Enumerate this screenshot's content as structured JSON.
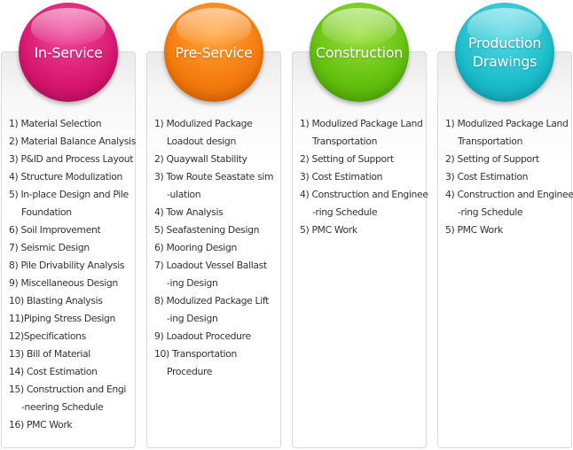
{
  "columns": [
    {
      "title": "In-Service",
      "color": "#d8166f",
      "lines": [
        "1) Material Selection",
        "2) Material Balance Analysis",
        "3) P&ID and Process Layout",
        "4) Structure Modulization",
        "5) In-place Design and Pile",
        "Foundation",
        "6) Soil Improvement",
        "7) Seismic Design",
        "8) Pile Drivability Analysis",
        "9) Miscellaneous Design",
        "10) Blasting Analysis",
        "11)Piping Stress Design",
        "12)Specifications",
        "13) Bill of Material",
        "14) Cost Estimation",
        "15) Construction and Engi",
        "-neering Schedule",
        "16) PMC Work"
      ]
    },
    {
      "title": "Pre-Service",
      "color": "#f47a0c",
      "lines": [
        "1) Modulized Package",
        "Loadout design",
        "2) Quaywall Stability",
        "3) Tow Route Seastate sim",
        "-ulation",
        "4) Tow Analysis",
        "5) Seafastening Design",
        "6) Mooring Design",
        "7) Loadout Vessel Ballast",
        "-ing Design",
        "8) Modulized Package Lift",
        "-ing Design",
        "9) Loadout Procedure",
        "10) Transportation",
        "Procedure"
      ]
    },
    {
      "title": "Construction",
      "color": "#62c00e",
      "lines": [
        "1) Modulized Package Land",
        "Transportation",
        "2) Setting of Support",
        "3) Cost Estimation",
        "4) Construction and Enginee",
        "-ring Schedule",
        "5) PMC Work"
      ]
    },
    {
      "title": "Production\nDrawings",
      "color": "#1bbccb",
      "lines": [
        "1) Modulized Package Land",
        "Transportation",
        "2) Setting of Support",
        "3) Cost Estimation",
        "4) Construction and Enginee",
        "-ring Schedule",
        "5) PMC Work"
      ]
    }
  ]
}
